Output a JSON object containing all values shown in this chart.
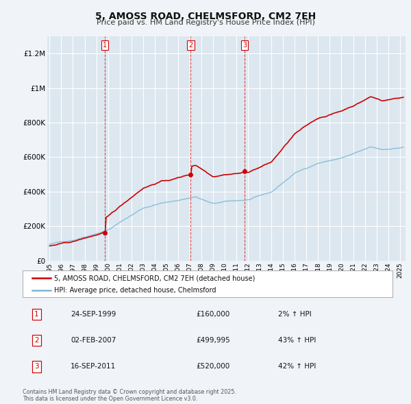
{
  "title": "5, AMOSS ROAD, CHELMSFORD, CM2 7EH",
  "subtitle": "Price paid vs. HM Land Registry's House Price Index (HPI)",
  "bg_color": "#f0f4f8",
  "plot_bg_color": "#dce7f0",
  "red_line_color": "#cc0000",
  "blue_line_color": "#7ab8d4",
  "grid_color": "#ffffff",
  "vline_color": "#cc2222",
  "ylim": [
    0,
    1300000
  ],
  "yticks": [
    0,
    200000,
    400000,
    600000,
    800000,
    1000000,
    1200000
  ],
  "ytick_labels": [
    "£0",
    "£200K",
    "£400K",
    "£600K",
    "£800K",
    "£1M",
    "£1.2M"
  ],
  "xmin": 1994.8,
  "xmax": 2025.5,
  "legend_red_label": "5, AMOSS ROAD, CHELMSFORD, CM2 7EH (detached house)",
  "legend_blue_label": "HPI: Average price, detached house, Chelmsford",
  "sale1_date": "24-SEP-1999",
  "sale1_price": "£160,000",
  "sale1_hpi": "2% ↑ HPI",
  "sale1_x": 1999.73,
  "sale1_y": 160000,
  "sale2_date": "02-FEB-2007",
  "sale2_price": "£499,995",
  "sale2_hpi": "43% ↑ HPI",
  "sale2_x": 2007.09,
  "sale2_y": 499995,
  "sale3_date": "16-SEP-2011",
  "sale3_price": "£520,000",
  "sale3_hpi": "42% ↑ HPI",
  "sale3_x": 2011.71,
  "sale3_y": 520000,
  "footer": "Contains HM Land Registry data © Crown copyright and database right 2025.\nThis data is licensed under the Open Government Licence v3.0.",
  "xticks": [
    1995,
    1996,
    1997,
    1998,
    1999,
    2000,
    2001,
    2002,
    2003,
    2004,
    2005,
    2006,
    2007,
    2008,
    2009,
    2010,
    2011,
    2012,
    2013,
    2014,
    2015,
    2016,
    2017,
    2018,
    2019,
    2020,
    2021,
    2022,
    2023,
    2024,
    2025
  ]
}
